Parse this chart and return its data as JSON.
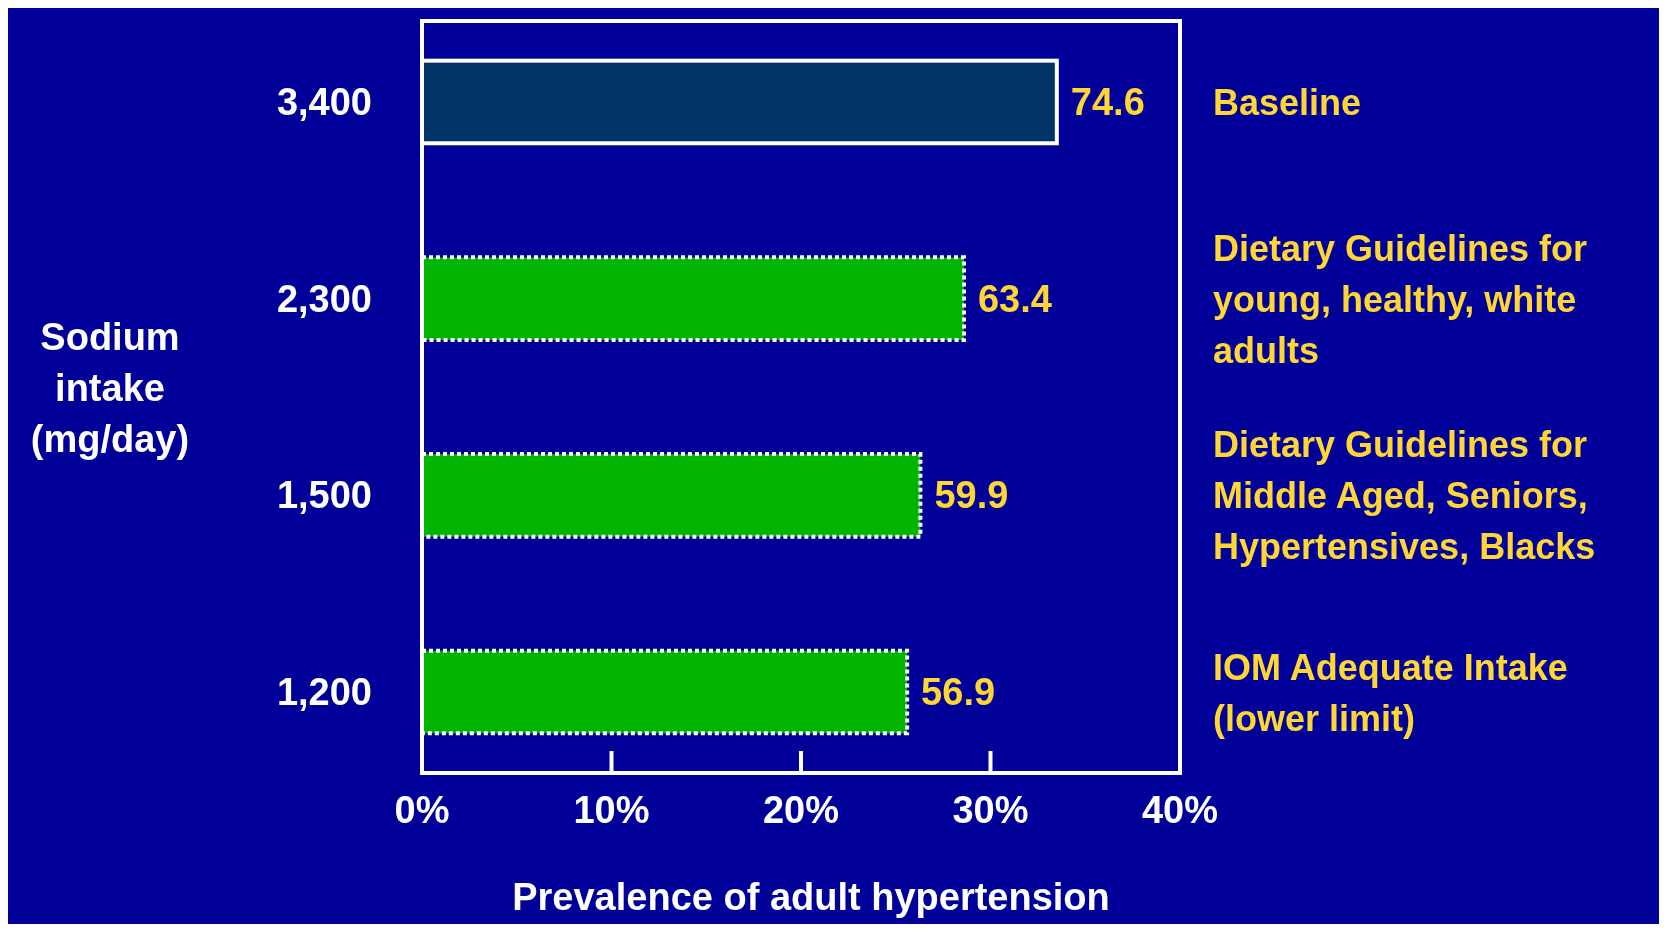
{
  "chart_data": {
    "type": "bar",
    "orientation": "horizontal",
    "ylabel": "Sodium intake (mg/day)",
    "xlabel": "Prevalence of adult hypertension",
    "categories": [
      "3,400",
      "2,300",
      "1,500",
      "1,200"
    ],
    "values": [
      33.5,
      28.6,
      26.3,
      25.6
    ],
    "colors": [
      "#003366",
      "#00b400",
      "#00b400",
      "#00b400"
    ],
    "xlim": [
      0,
      40
    ],
    "xticks": [
      {
        "value": 0,
        "label": "0%"
      },
      {
        "value": 10,
        "label": "10%"
      },
      {
        "value": 20,
        "label": "20%"
      },
      {
        "value": 30,
        "label": "30%"
      },
      {
        "value": 40,
        "label": "40%"
      }
    ],
    "annotations": [
      {
        "text": "74.6",
        "x": 33.5,
        "y": "3,400"
      },
      {
        "text": "63.4",
        "x": 28.6,
        "y": "2,300"
      },
      {
        "text": "59.9",
        "x": 26.3,
        "y": "1,500"
      },
      {
        "text": "56.9",
        "x": 25.6,
        "y": "1,200"
      },
      "Baseline",
      "Dietary Guidelines for young, healthy, white adults",
      "Dietary Guidelines for Middle Aged, Seniors, Hypertensives, Blacks",
      "IOM Adequate Intake (lower limit)"
    ]
  }
}
